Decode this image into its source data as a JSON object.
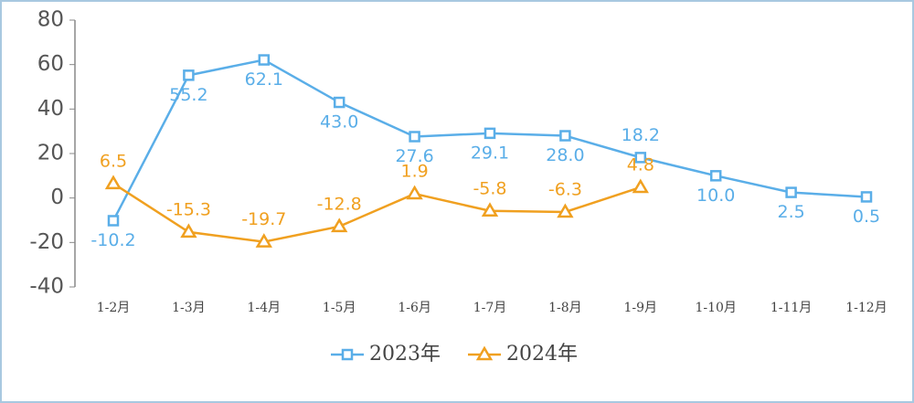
{
  "chart_data": {
    "type": "line",
    "categories": [
      "1-2月",
      "1-3月",
      "1-4月",
      "1-5月",
      "1-6月",
      "1-7月",
      "1-8月",
      "1-9月",
      "1-10月",
      "1-11月",
      "1-12月"
    ],
    "series": [
      {
        "name": "2023年",
        "color": "#5aaee8",
        "marker": "square",
        "values": [
          -10.2,
          55.2,
          62.1,
          43.0,
          27.6,
          29.1,
          28.0,
          18.2,
          10.0,
          2.5,
          0.5
        ],
        "value_labels": [
          "-10.2",
          "55.2",
          "62.1",
          "43.0",
          "27.6",
          "29.1",
          "28.0",
          "18.2",
          "10.0",
          "2.5",
          "0.5"
        ]
      },
      {
        "name": "2024年",
        "color": "#f0a020",
        "marker": "triangle",
        "values": [
          6.5,
          -15.3,
          -19.7,
          -12.8,
          1.9,
          -5.8,
          -6.3,
          4.8,
          null,
          null,
          null
        ],
        "value_labels": [
          "6.5",
          "-15.3",
          "-19.7",
          "-12.8",
          "1.9",
          "-5.8",
          "-6.3",
          "4.8",
          null,
          null,
          null
        ]
      }
    ],
    "ylim": [
      -40,
      80
    ],
    "yticks": [
      -40,
      -20,
      0,
      20,
      40,
      60,
      80
    ],
    "grid": false,
    "legend": "bottom"
  }
}
